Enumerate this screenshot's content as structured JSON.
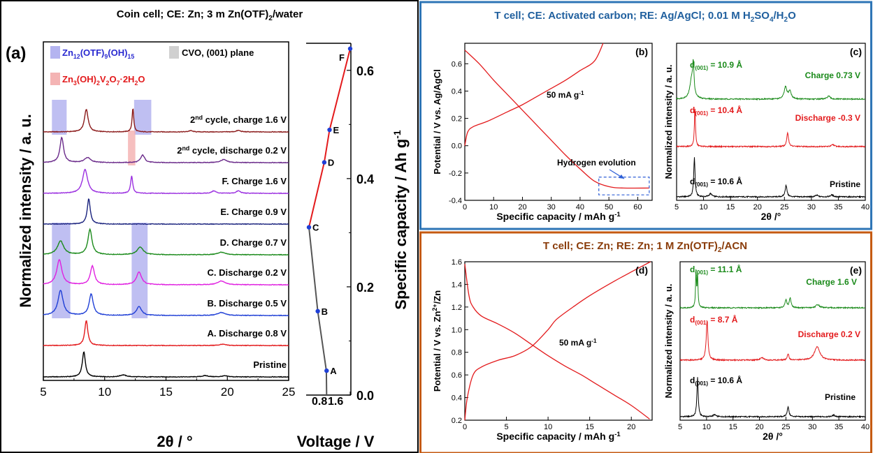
{
  "panel_titles": {
    "left": [
      "Coin cell; CE: Zn; 3 m Zn(OTF)",
      "2",
      "/water"
    ],
    "top_right": [
      "T cell;  CE: Activated carbon; RE: Ag/AgCl; 0.01 M H",
      "2",
      "SO",
      "4",
      "/H",
      "2",
      "O"
    ],
    "bottom_right": [
      "T cell;  CE: Zn; RE: Zn; 1 M Zn(OTF)",
      "2",
      "/ACN"
    ]
  },
  "colors": {
    "left_frame": "#000000",
    "top_right_frame": "#2e75b6",
    "bottom_right_frame": "#c55a11",
    "title_top": "#1f5f9e",
    "title_bottom": "#8a3c0a",
    "blue_band": "#b4b4f0",
    "grey_band": "#d0d0d0",
    "pink_band": "#f4b4b4"
  },
  "chart_data": [
    {
      "id": "a",
      "type": "line",
      "panel_label": "(a)",
      "xlabel": "2θ  / °",
      "ylabel": "Normalized intensity / a. u.",
      "xlim": [
        5,
        25
      ],
      "xticks": [
        5,
        10,
        15,
        20,
        25
      ],
      "legend": {
        "blue": [
          "Zn",
          "12",
          "(OTF)",
          "9",
          "(OH)",
          "15"
        ],
        "grey": "CVO, (001) plane",
        "pink": [
          "Zn",
          "3",
          "(OH)",
          "2",
          "V",
          "2",
          "O",
          "7",
          "·2H",
          "2",
          "O"
        ]
      },
      "bands": [
        {
          "type": "grey",
          "x": [
            7.2,
            9.7
          ],
          "rows": [
            0,
            9
          ]
        },
        {
          "type": "pink",
          "x": [
            11.9,
            12.5
          ],
          "rows": [
            9,
            9
          ]
        },
        {
          "type": "blue",
          "x": [
            5.7,
            6.9
          ],
          "rows": [
            8,
            8
          ]
        },
        {
          "type": "blue",
          "x": [
            12.4,
            13.8
          ],
          "rows": [
            8,
            8
          ]
        },
        {
          "type": "pink",
          "x": [
            11.9,
            12.5
          ],
          "rows": [
            7,
            7
          ]
        },
        {
          "type": "blue",
          "x": [
            5.7,
            7.2
          ],
          "rows": [
            2,
            4
          ]
        },
        {
          "type": "blue",
          "x": [
            12.2,
            13.5
          ],
          "rows": [
            2,
            4
          ]
        }
      ],
      "series": [
        {
          "label": "Pristine",
          "color": "#000000",
          "peaks": [
            [
              8.3,
              1.0,
              0.15
            ],
            [
              11.5,
              0.08,
              0.3
            ],
            [
              18.2,
              0.05,
              0.3
            ],
            [
              19.8,
              0.04,
              0.3
            ]
          ]
        },
        {
          "label": "A. Discharge 0.8 V",
          "color": "#e31a1c",
          "peaks": [
            [
              8.5,
              1.0,
              0.15
            ],
            [
              19.6,
              0.05,
              0.3
            ]
          ]
        },
        {
          "label": "B. Discharge 0.5 V",
          "color": "#1f3fd6",
          "peaks": [
            [
              6.4,
              1.0,
              0.25
            ],
            [
              8.9,
              0.85,
              0.2
            ],
            [
              12.8,
              0.35,
              0.25
            ],
            [
              19.5,
              0.12,
              0.35
            ]
          ]
        },
        {
          "label": "C. Discharge 0.2 V",
          "color": "#e020e0",
          "peaks": [
            [
              6.3,
              1.0,
              0.25
            ],
            [
              9.0,
              0.75,
              0.2
            ],
            [
              12.8,
              0.5,
              0.25
            ],
            [
              19.5,
              0.15,
              0.35
            ]
          ]
        },
        {
          "label": "D. Charge 0.7 V",
          "color": "#1a8a1a",
          "peaks": [
            [
              6.4,
              0.55,
              0.3
            ],
            [
              8.8,
              1.0,
              0.2
            ],
            [
              12.9,
              0.3,
              0.3
            ],
            [
              19.5,
              0.1,
              0.35
            ]
          ]
        },
        {
          "label": "E. Charge 0.9 V",
          "color": "#1a237e",
          "peaks": [
            [
              8.7,
              1.0,
              0.15
            ]
          ]
        },
        {
          "label": "F. Charge 1.6 V",
          "color": "#9b30e0",
          "peaks": [
            [
              8.4,
              0.95,
              0.25
            ],
            [
              12.2,
              0.7,
              0.1
            ],
            [
              18.9,
              0.1,
              0.2
            ],
            [
              20.9,
              0.1,
              0.2
            ]
          ]
        },
        {
          "label": [
            "2",
            "nd",
            " cycle, discharge 0.2 V"
          ],
          "color": "#6a2a8a",
          "peaks": [
            [
              6.5,
              1.0,
              0.18
            ],
            [
              8.6,
              0.2,
              0.3
            ],
            [
              13.1,
              0.3,
              0.2
            ],
            [
              19.7,
              0.12,
              0.3
            ]
          ]
        },
        {
          "label": [
            "2",
            "nd",
            " cycle, charge 1.6 V"
          ],
          "color": "#8b1a1a",
          "peaks": [
            [
              8.5,
              0.9,
              0.18
            ],
            [
              12.3,
              0.95,
              0.08
            ],
            [
              17.0,
              0.05,
              0.2
            ],
            [
              20.9,
              0.06,
              0.2
            ]
          ]
        }
      ]
    },
    {
      "id": "a-right",
      "type": "line",
      "xlabel": "Voltage / V",
      "ylabel": "Specific capacity / Ah g-1",
      "xticks": [
        "0.8",
        "1.6"
      ],
      "ylim": [
        0,
        0.65
      ],
      "yticks": [
        "0.0",
        "0.2",
        "0.4",
        "0.6"
      ],
      "curve": [
        [
          0.8,
          0.0
        ],
        [
          0.79,
          0.045
        ],
        [
          0.5,
          0.155
        ],
        [
          0.2,
          0.31
        ],
        [
          0.72,
          0.43
        ],
        [
          0.9,
          0.49
        ],
        [
          1.6,
          0.64
        ]
      ],
      "points": [
        {
          "label": "A",
          "v": 0.8,
          "c": 0.045
        },
        {
          "label": "B",
          "v": 0.5,
          "c": 0.155
        },
        {
          "label": "C",
          "v": 0.2,
          "c": 0.31
        },
        {
          "label": "D",
          "v": 0.72,
          "c": 0.43
        },
        {
          "label": "E",
          "v": 0.9,
          "c": 0.49
        },
        {
          "label": "F",
          "v": 1.6,
          "c": 0.64
        }
      ]
    },
    {
      "id": "b",
      "type": "line",
      "panel_label": "(b)",
      "xlabel": [
        "Specific capacity / mAh g",
        "-1"
      ],
      "ylabel": "Potential / V vs. Ag/AgCl",
      "xlim": [
        0,
        65
      ],
      "ylim": [
        -0.4,
        0.75
      ],
      "xticks": [
        0,
        10,
        20,
        30,
        40,
        50,
        60
      ],
      "yticks": [
        "-0.4",
        "-0.2",
        "0.0",
        "0.2",
        "0.4",
        "0.6"
      ],
      "annotation_rate": [
        "50 mA g",
        "-1"
      ],
      "annotation_h2": "Hydrogen evolution",
      "discharge": [
        [
          0,
          0.7
        ],
        [
          5,
          0.6
        ],
        [
          10,
          0.48
        ],
        [
          15,
          0.37
        ],
        [
          20,
          0.26
        ],
        [
          25,
          0.15
        ],
        [
          30,
          0.04
        ],
        [
          35,
          -0.07
        ],
        [
          40,
          -0.17
        ],
        [
          45,
          -0.26
        ],
        [
          50,
          -0.3
        ],
        [
          55,
          -0.31
        ],
        [
          64,
          -0.31
        ]
      ],
      "charge": [
        [
          0,
          0.0
        ],
        [
          1,
          0.1
        ],
        [
          3,
          0.14
        ],
        [
          8,
          0.18
        ],
        [
          15,
          0.25
        ],
        [
          20,
          0.3
        ],
        [
          25,
          0.36
        ],
        [
          30,
          0.42
        ],
        [
          35,
          0.48
        ],
        [
          40,
          0.55
        ],
        [
          45,
          0.62
        ],
        [
          48,
          0.75
        ]
      ]
    },
    {
      "id": "c",
      "type": "line",
      "panel_label": "(c)",
      "xlabel": "2θ  /°",
      "ylabel": "Normalized intensity / a. u.",
      "xlim": [
        5,
        40
      ],
      "xticks": [
        5,
        10,
        15,
        20,
        25,
        30,
        35,
        40
      ],
      "series": [
        {
          "label": "Pristine",
          "d": "10.6 Å",
          "color": "#000000",
          "peaks": [
            [
              8.3,
              1.0,
              0.15
            ],
            [
              11.3,
              0.08,
              0.3
            ],
            [
              25.3,
              0.3,
              0.2
            ],
            [
              31.0,
              0.04,
              0.3
            ],
            [
              33.8,
              0.05,
              0.3
            ]
          ]
        },
        {
          "label": "Discharge -0.3 V",
          "d": "10.4 Å",
          "color": "#e31a1c",
          "peaks": [
            [
              8.4,
              1.0,
              0.12
            ],
            [
              25.6,
              0.35,
              0.2
            ],
            [
              34.0,
              0.05,
              0.3
            ]
          ]
        },
        {
          "label": "Charge 0.73 V",
          "d": "10.9 Å",
          "color": "#1a8a1a",
          "peaks": [
            [
              7.8,
              0.5,
              0.4
            ],
            [
              8.1,
              0.7,
              0.15
            ],
            [
              25.2,
              0.3,
              0.3
            ],
            [
              26.0,
              0.2,
              0.3
            ],
            [
              33.2,
              0.08,
              0.3
            ]
          ]
        }
      ]
    },
    {
      "id": "d",
      "type": "line",
      "panel_label": "(d)",
      "xlabel": [
        "Specific capacity / mAh g",
        "-1"
      ],
      "ylabel": [
        "Potential / V vs. Zn",
        "2+",
        "/Zn"
      ],
      "xlim": [
        0,
        22.5
      ],
      "ylim": [
        0.2,
        1.6
      ],
      "xticks": [
        0,
        5,
        10,
        15,
        20
      ],
      "yticks": [
        "0.2",
        "0.4",
        "0.6",
        "0.8",
        "1.0",
        "1.2",
        "1.4",
        "1.6"
      ],
      "annotation_rate": [
        "50 mA g",
        "-1"
      ],
      "discharge": [
        [
          0,
          1.58
        ],
        [
          0.5,
          1.3
        ],
        [
          1,
          1.2
        ],
        [
          2,
          1.12
        ],
        [
          4,
          1.05
        ],
        [
          6,
          0.97
        ],
        [
          8,
          0.87
        ],
        [
          10,
          0.77
        ],
        [
          12,
          0.68
        ],
        [
          14,
          0.6
        ],
        [
          16,
          0.51
        ],
        [
          18,
          0.42
        ],
        [
          20,
          0.33
        ],
        [
          22.2,
          0.21
        ]
      ],
      "charge": [
        [
          0,
          0.2
        ],
        [
          0.3,
          0.4
        ],
        [
          1,
          0.6
        ],
        [
          2,
          0.67
        ],
        [
          4,
          0.73
        ],
        [
          6,
          0.77
        ],
        [
          8,
          0.85
        ],
        [
          10,
          1.0
        ],
        [
          11,
          1.09
        ],
        [
          13,
          1.2
        ],
        [
          15,
          1.3
        ],
        [
          18,
          1.43
        ],
        [
          20,
          1.51
        ],
        [
          22.3,
          1.6
        ]
      ]
    },
    {
      "id": "e",
      "type": "line",
      "panel_label": "(e)",
      "xlabel": "2θ  /°",
      "ylabel": "Normalized intensity / a. u.",
      "xlim": [
        5,
        40
      ],
      "xticks": [
        5,
        10,
        15,
        20,
        25,
        30,
        35,
        40
      ],
      "series": [
        {
          "label": "Pristine",
          "d": "10.6 Å",
          "color": "#000000",
          "peaks": [
            [
              8.3,
              1.0,
              0.15
            ],
            [
              25.4,
              0.25,
              0.2
            ],
            [
              11.5,
              0.05,
              0.3
            ],
            [
              34,
              0.04,
              0.3
            ]
          ]
        },
        {
          "label": "Discharge 0.2 V",
          "d": "8.7 Å",
          "color": "#e31a1c",
          "peaks": [
            [
              10.1,
              1.0,
              0.2
            ],
            [
              25.4,
              0.15,
              0.2
            ],
            [
              30.9,
              0.35,
              0.6
            ],
            [
              20.5,
              0.06,
              0.4
            ]
          ]
        },
        {
          "label": "Charge 1.6 V",
          "d": "11.1 Å",
          "color": "#1a8a1a",
          "peaks": [
            [
              8.0,
              0.9,
              0.1
            ],
            [
              8.3,
              0.85,
              0.1
            ],
            [
              25.0,
              0.2,
              0.2
            ],
            [
              25.8,
              0.25,
              0.2
            ],
            [
              31,
              0.08,
              0.4
            ]
          ]
        }
      ]
    }
  ]
}
